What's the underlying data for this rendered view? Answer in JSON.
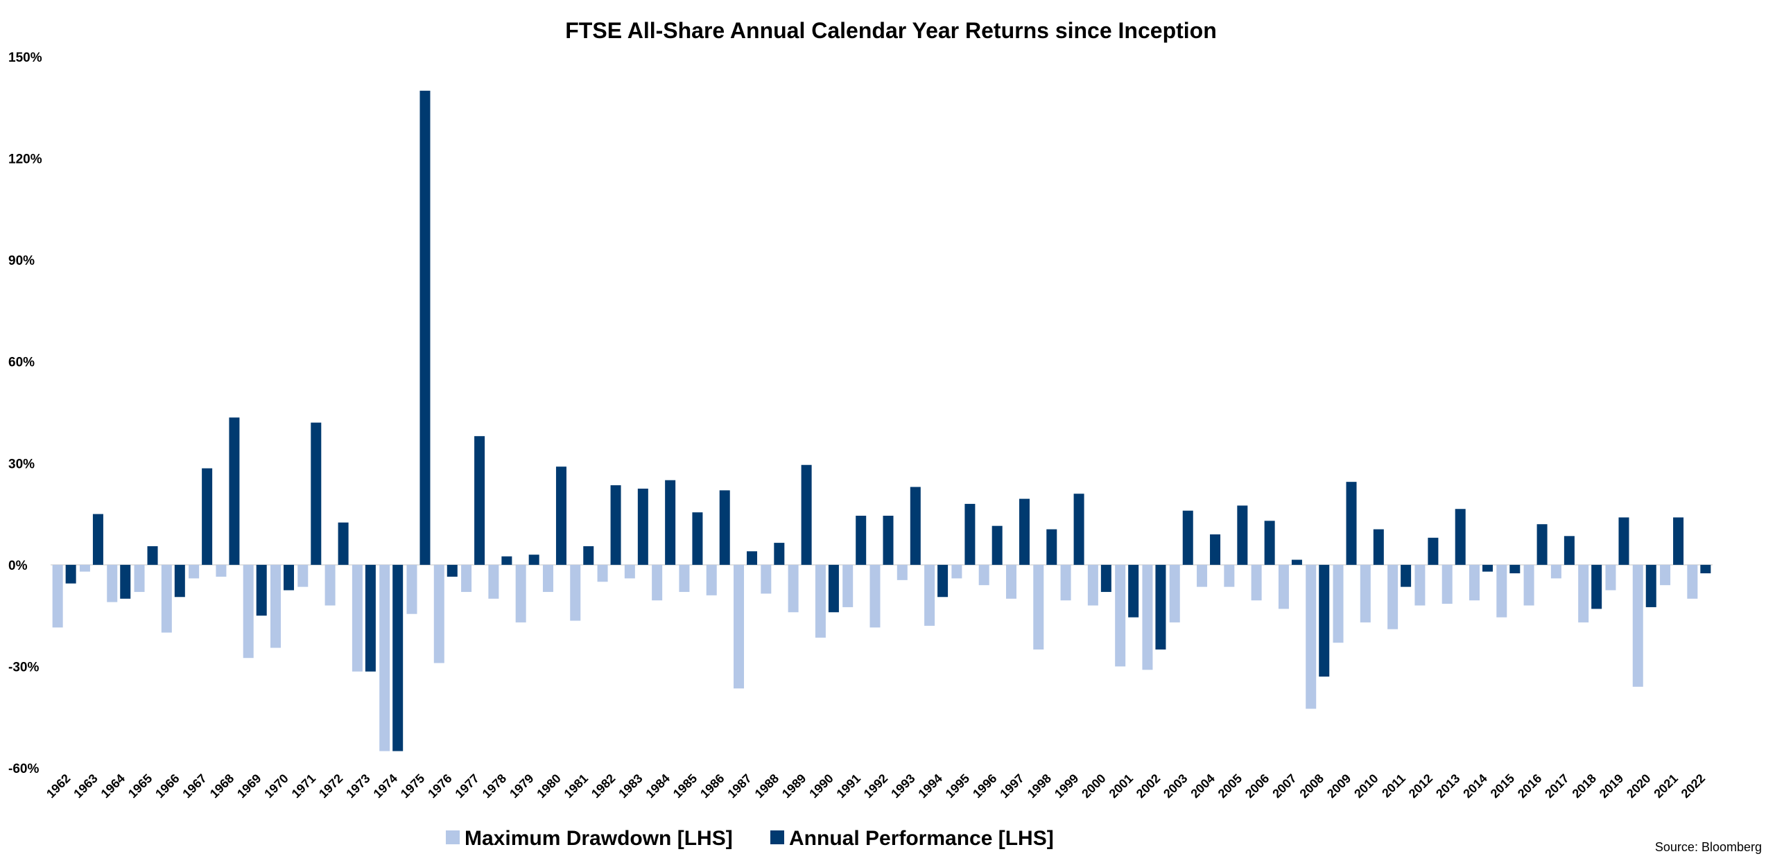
{
  "chart_data": {
    "type": "bar",
    "title": "FTSE All-Share Annual Calendar Year Returns since Inception",
    "xlabel": "",
    "ylabel": "",
    "ylim": [
      -60,
      150
    ],
    "yticks": [
      150,
      120,
      90,
      60,
      30,
      0,
      -30,
      -60
    ],
    "ytick_labels": [
      "150%",
      "120%",
      "90%",
      "60%",
      "30%",
      "0%",
      "-30%",
      "-60%"
    ],
    "grid": false,
    "legend_position": "bottom-center",
    "source": "Source: Bloomberg",
    "categories": [
      "1962",
      "1963",
      "1964",
      "1965",
      "1966",
      "1967",
      "1968",
      "1969",
      "1970",
      "1971",
      "1972",
      "1973",
      "1974",
      "1975",
      "1976",
      "1977",
      "1978",
      "1979",
      "1980",
      "1981",
      "1982",
      "1983",
      "1984",
      "1985",
      "1986",
      "1987",
      "1988",
      "1989",
      "1990",
      "1991",
      "1992",
      "1993",
      "1994",
      "1995",
      "1996",
      "1997",
      "1998",
      "1999",
      "2000",
      "2001",
      "2002",
      "2003",
      "2004",
      "2005",
      "2006",
      "2007",
      "2008",
      "2009",
      "2010",
      "2011",
      "2012",
      "2013",
      "2014",
      "2015",
      "2016",
      "2017",
      "2018",
      "2019",
      "2020",
      "2021",
      "2022"
    ],
    "series": [
      {
        "name": "Maximum Drawdown [LHS]",
        "color": "#b4c7e7",
        "values": [
          -18.5,
          -2,
          -11,
          -8,
          -20,
          -4,
          -3.5,
          -27.5,
          -24.5,
          -6.5,
          -12,
          -31.5,
          -55,
          -14.5,
          -29,
          -8,
          -10,
          -17,
          -8,
          -16.5,
          -5,
          -4,
          -10.5,
          -8,
          -9,
          -36.5,
          -8.5,
          -14,
          -21.5,
          -12.5,
          -18.5,
          -4.5,
          -18,
          -4,
          -6,
          -10,
          -25,
          -10.5,
          -12,
          -30,
          -31,
          -17,
          -6.5,
          -6.5,
          -10.5,
          -13,
          -42.5,
          -23,
          -17,
          -19,
          -12,
          -11.5,
          -10.5,
          -15.5,
          -12,
          -4,
          -17,
          -7.5,
          -36,
          -6,
          -10
        ]
      },
      {
        "name": "Annual Performance [LHS]",
        "color": "#003a70",
        "values": [
          -5.5,
          15,
          -10,
          5.5,
          -9.5,
          28.5,
          43.5,
          -15,
          -7.5,
          42,
          12.5,
          -31.5,
          -55,
          140,
          -3.5,
          38,
          2.5,
          3,
          29,
          5.5,
          23.5,
          22.5,
          25,
          15.5,
          22,
          4,
          6.5,
          29.5,
          -14,
          14.5,
          14.5,
          23,
          -9.5,
          18,
          11.5,
          19.5,
          10.5,
          21,
          -8,
          -15.5,
          -25,
          16,
          9,
          17.5,
          13,
          1.5,
          -33,
          24.5,
          10.5,
          -6.5,
          8,
          16.5,
          -2,
          -2.5,
          12,
          8.5,
          -13,
          14,
          -12.5,
          14,
          -2.5
        ]
      }
    ]
  }
}
